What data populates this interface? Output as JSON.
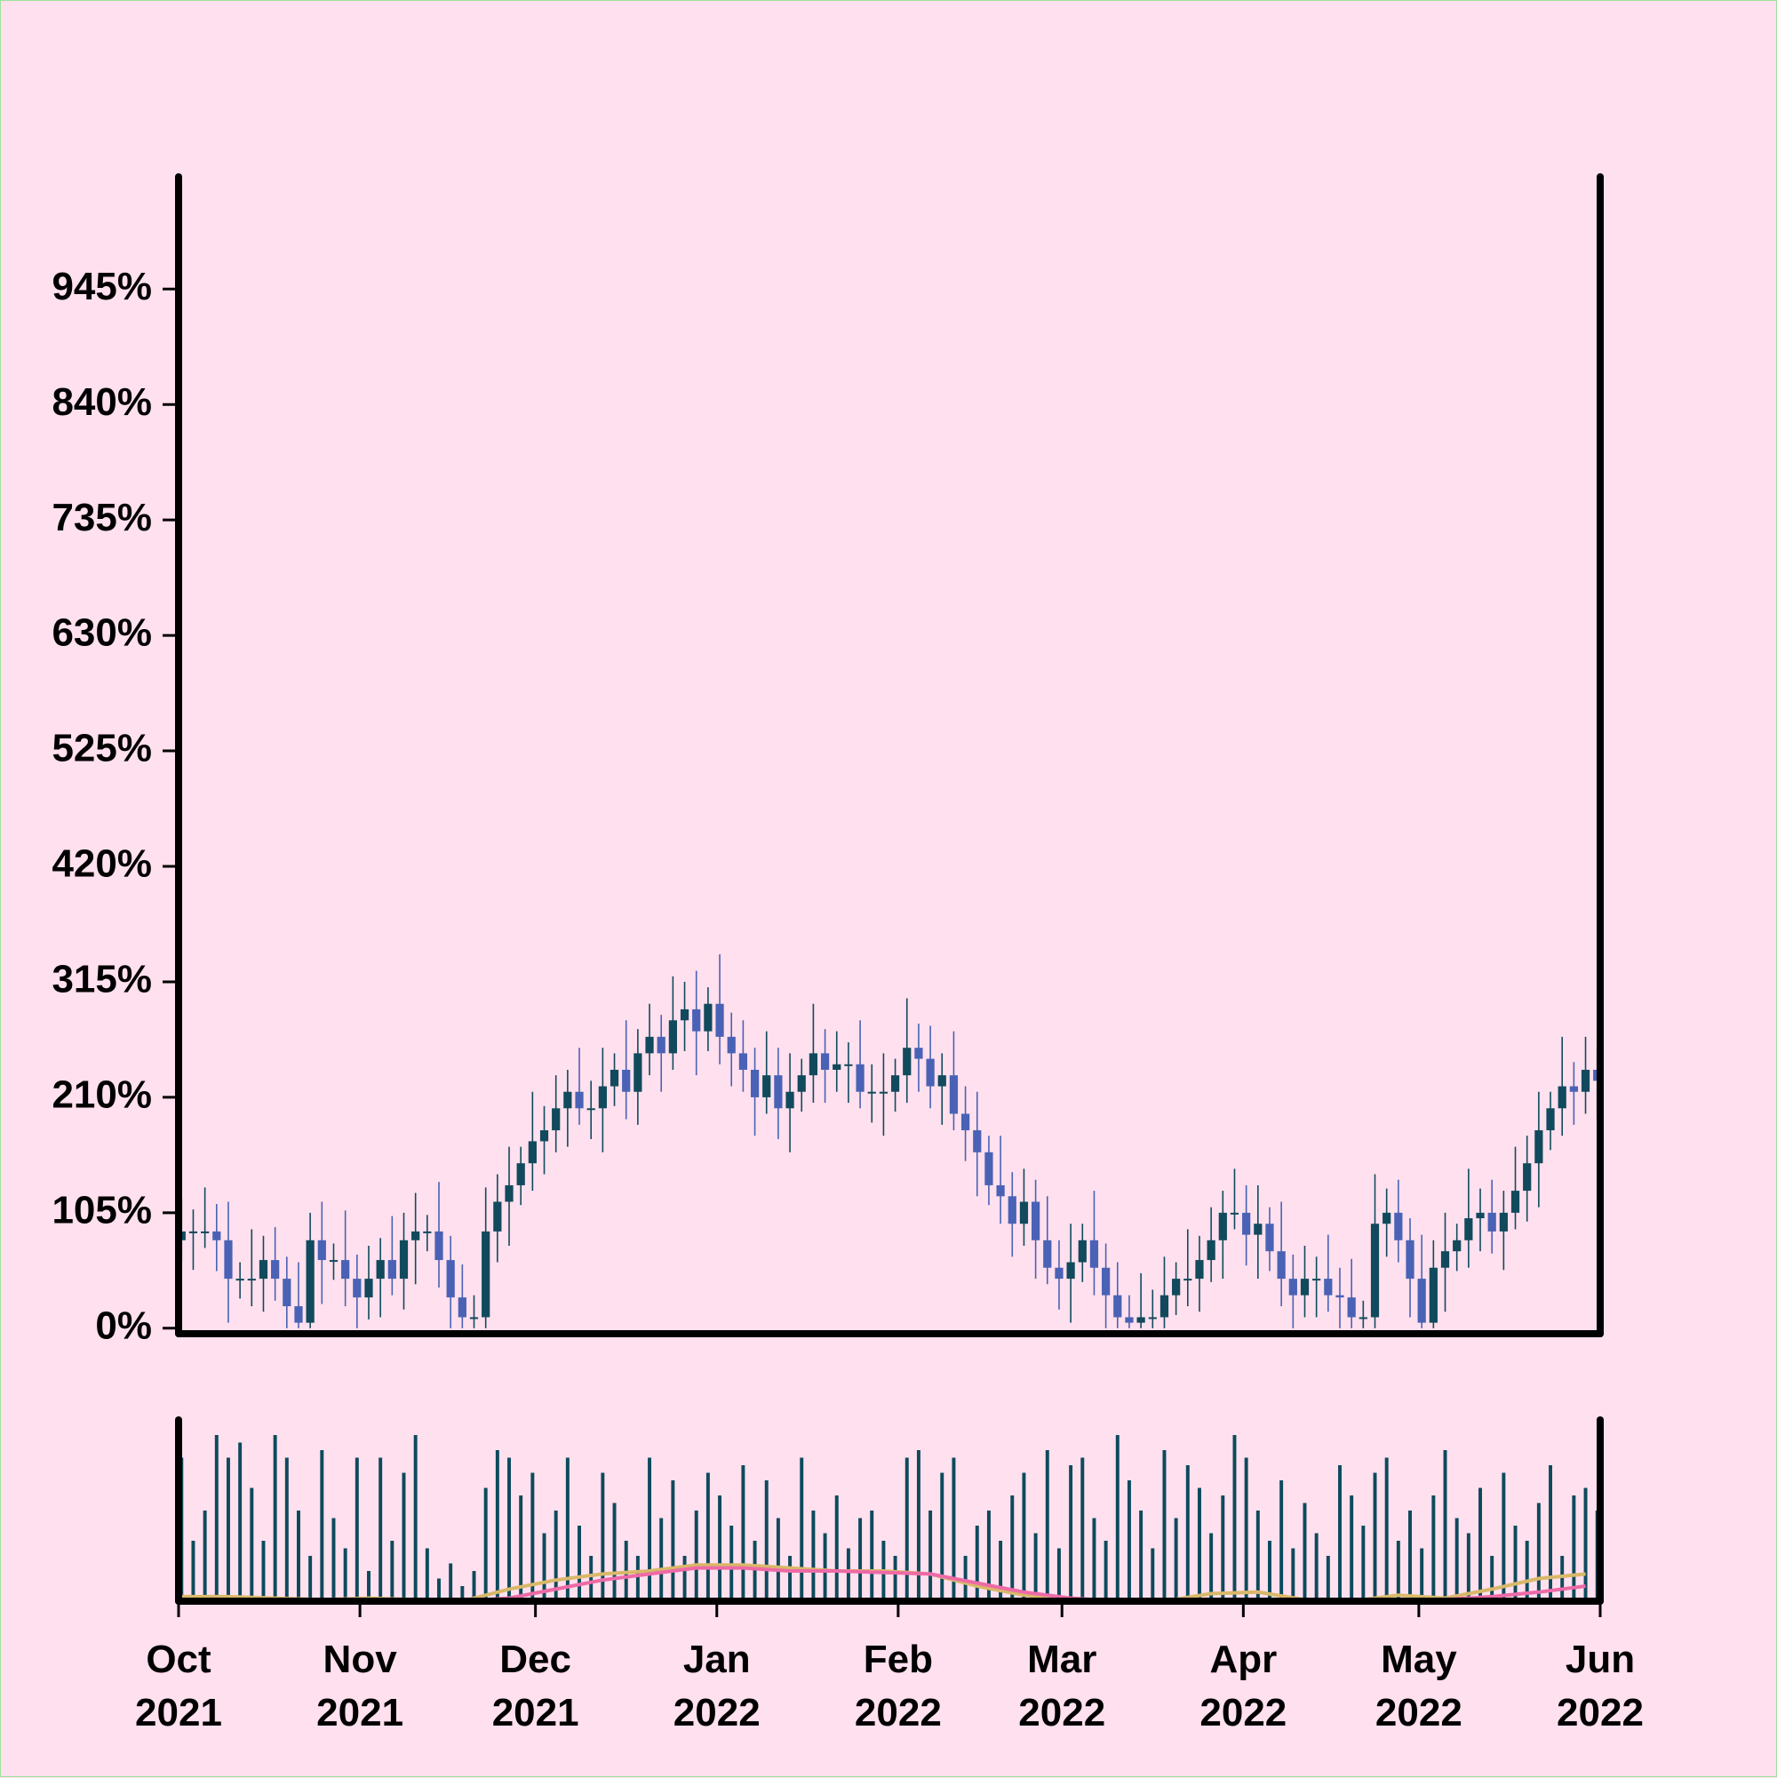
{
  "chart_data": {
    "type": "candlestick",
    "up_color": "#114a5c",
    "down_color": "#4a62b5",
    "open": [
      80,
      88,
      88,
      88,
      80,
      45,
      45,
      45,
      62,
      45,
      20,
      5,
      80,
      62,
      62,
      45,
      28,
      45,
      62,
      45,
      80,
      88,
      88,
      62,
      28,
      10,
      10,
      88,
      115,
      130,
      150,
      170,
      180,
      200,
      215,
      200,
      200,
      220,
      235,
      215,
      250,
      265,
      250,
      280,
      290,
      270,
      295,
      265,
      250,
      235,
      210,
      230,
      200,
      215,
      230,
      250,
      235,
      240,
      240,
      215,
      215,
      215,
      230,
      255,
      245,
      220,
      230,
      195,
      180,
      160,
      130,
      120,
      95,
      115,
      80,
      55,
      45,
      60,
      80,
      55,
      30,
      10,
      5,
      10,
      10,
      30,
      45,
      45,
      62,
      80,
      105,
      105,
      85,
      95,
      70,
      45,
      30,
      45,
      45,
      30,
      28,
      10,
      10,
      95,
      105,
      80,
      45,
      5,
      55,
      70,
      80,
      100,
      105,
      88,
      105,
      125,
      150,
      180,
      200,
      220,
      215,
      235
    ],
    "high": [
      118,
      108,
      128,
      113,
      115,
      60,
      90,
      84,
      92,
      65,
      60,
      105,
      115,
      77,
      107,
      67,
      75,
      82,
      102,
      105,
      123,
      103,
      133,
      84,
      58,
      30,
      128,
      140,
      165,
      165,
      215,
      202,
      230,
      235,
      255,
      225,
      255,
      250,
      280,
      272,
      295,
      285,
      320,
      315,
      325,
      310,
      340,
      287,
      280,
      255,
      270,
      255,
      250,
      245,
      295,
      272,
      270,
      260,
      280,
      240,
      250,
      245,
      300,
      277,
      275,
      250,
      270,
      220,
      215,
      175,
      175,
      142,
      145,
      135,
      120,
      80,
      95,
      95,
      125,
      77,
      60,
      30,
      50,
      35,
      65,
      60,
      90,
      84,
      110,
      125,
      145,
      130,
      130,
      110,
      115,
      67,
      75,
      65,
      85,
      55,
      63,
      25,
      140,
      127,
      135,
      100,
      85,
      80,
      105,
      95,
      145,
      127,
      135,
      125,
      165,
      175,
      215,
      215,
      265,
      242,
      265,
      255
    ],
    "low": [
      60,
      53,
      73,
      52,
      5,
      27,
      20,
      15,
      25,
      0,
      0,
      0,
      22,
      44,
      20,
      0,
      8,
      10,
      30,
      17,
      40,
      70,
      37,
      0,
      0,
      0,
      0,
      60,
      75,
      112,
      125,
      140,
      160,
      165,
      185,
      172,
      160,
      202,
      190,
      185,
      230,
      215,
      235,
      252,
      230,
      252,
      240,
      220,
      215,
      175,
      195,
      172,
      160,
      197,
      205,
      205,
      215,
      205,
      200,
      187,
      175,
      197,
      205,
      215,
      200,
      185,
      180,
      152,
      120,
      112,
      95,
      65,
      75,
      45,
      40,
      17,
      5,
      42,
      30,
      0,
      0,
      0,
      0,
      0,
      0,
      12,
      20,
      15,
      42,
      45,
      90,
      57,
      45,
      52,
      20,
      0,
      10,
      10,
      15,
      0,
      0,
      0,
      0,
      65,
      60,
      10,
      0,
      0,
      15,
      52,
      55,
      70,
      68,
      53,
      90,
      97,
      110,
      162,
      175,
      185,
      195,
      190
    ],
    "close": [
      88,
      88,
      88,
      80,
      45,
      45,
      45,
      62,
      45,
      20,
      5,
      80,
      62,
      62,
      45,
      28,
      45,
      62,
      45,
      80,
      88,
      88,
      62,
      28,
      10,
      10,
      88,
      115,
      130,
      150,
      170,
      180,
      200,
      215,
      200,
      200,
      220,
      235,
      215,
      250,
      265,
      250,
      280,
      290,
      270,
      295,
      265,
      250,
      235,
      210,
      230,
      200,
      215,
      230,
      250,
      235,
      240,
      240,
      215,
      215,
      215,
      230,
      255,
      245,
      220,
      230,
      195,
      180,
      160,
      130,
      120,
      95,
      115,
      80,
      55,
      45,
      60,
      80,
      55,
      30,
      10,
      5,
      10,
      10,
      30,
      45,
      45,
      62,
      80,
      105,
      105,
      85,
      95,
      70,
      45,
      30,
      45,
      45,
      30,
      28,
      10,
      10,
      95,
      105,
      80,
      45,
      5,
      55,
      70,
      80,
      100,
      105,
      88,
      105,
      125,
      150,
      180,
      200,
      220,
      215,
      235,
      225
    ],
    "ylim": [
      -5,
      1047
    ],
    "yticks": [
      {
        "value": 0,
        "label": "0%"
      },
      {
        "value": 105,
        "label": "105%"
      },
      {
        "value": 210,
        "label": "210%"
      },
      {
        "value": 315,
        "label": "315%"
      },
      {
        "value": 420,
        "label": "420%"
      },
      {
        "value": 525,
        "label": "525%"
      },
      {
        "value": 630,
        "label": "630%"
      },
      {
        "value": 735,
        "label": "735%"
      },
      {
        "value": 840,
        "label": "840%"
      },
      {
        "value": 945,
        "label": "945%"
      }
    ],
    "xlim": [
      0,
      121.5
    ],
    "xticks": [
      {
        "value": 0,
        "label": "Oct\n2021"
      },
      {
        "value": 15.5,
        "label": "Nov\n2021"
      },
      {
        "value": 30.5,
        "label": "Dec\n2021"
      },
      {
        "value": 46,
        "label": "Jan\n2022"
      },
      {
        "value": 61.5,
        "label": "Feb\n2022"
      },
      {
        "value": 75.5,
        "label": "Mar\n2022"
      },
      {
        "value": 91,
        "label": "Apr\n2022"
      },
      {
        "value": 106,
        "label": "May\n2022"
      },
      {
        "value": 121.5,
        "label": "Jun\n2022"
      }
    ],
    "volume": {
      "color": "#0d4a5c",
      "ylim": [
        0,
        120
      ],
      "values": [
        95,
        40,
        60,
        110,
        95,
        105,
        75,
        40,
        110,
        95,
        60,
        30,
        100,
        55,
        35,
        95,
        20,
        95,
        40,
        85,
        110,
        35,
        15,
        25,
        10,
        20,
        75,
        100,
        95,
        70,
        85,
        45,
        60,
        95,
        50,
        30,
        85,
        65,
        40,
        30,
        95,
        55,
        80,
        30,
        60,
        85,
        70,
        50,
        90,
        40,
        80,
        55,
        30,
        95,
        60,
        45,
        70,
        35,
        55,
        60,
        40,
        30,
        95,
        100,
        60,
        85,
        95,
        30,
        50,
        60,
        40,
        70,
        85,
        45,
        100,
        35,
        90,
        95,
        55,
        40,
        110,
        80,
        60,
        35,
        100,
        55,
        90,
        75,
        45,
        70,
        110,
        95,
        60,
        40,
        80,
        35,
        65,
        45,
        30,
        90,
        70,
        50,
        85,
        95,
        40,
        60,
        35,
        70,
        100,
        55,
        45,
        75,
        30,
        85,
        50,
        40,
        65,
        90,
        30,
        70,
        75,
        60
      ],
      "lines": [
        {
          "color": "#d9b86a",
          "x": [
            0,
            4,
            8,
            12,
            16,
            20,
            24,
            28,
            32,
            36,
            40,
            44,
            48,
            52,
            56,
            60,
            64,
            68,
            72,
            76,
            80,
            84,
            88,
            92,
            96,
            100,
            104,
            108,
            112,
            116,
            120
          ],
          "values": [
            3,
            3,
            2,
            1,
            2,
            1,
            0,
            8,
            14,
            18,
            20,
            24,
            24,
            22,
            20,
            20,
            18,
            10,
            4,
            1,
            0,
            0,
            5,
            6,
            1,
            0,
            4,
            2,
            8,
            15,
            18
          ]
        },
        {
          "color": "#ee6aa7",
          "x": [
            0,
            4,
            8,
            12,
            16,
            20,
            24,
            28,
            32,
            36,
            40,
            44,
            48,
            52,
            56,
            60,
            64,
            68,
            72,
            76,
            80,
            84,
            88,
            92,
            96,
            100,
            104,
            108,
            112,
            116,
            120
          ],
          "values": [
            0,
            0,
            0,
            0,
            0,
            0,
            0,
            2,
            8,
            14,
            18,
            22,
            22,
            20,
            20,
            19,
            18,
            12,
            6,
            2,
            0,
            0,
            0,
            0,
            0,
            0,
            0,
            1,
            3,
            6,
            10
          ]
        }
      ]
    }
  }
}
